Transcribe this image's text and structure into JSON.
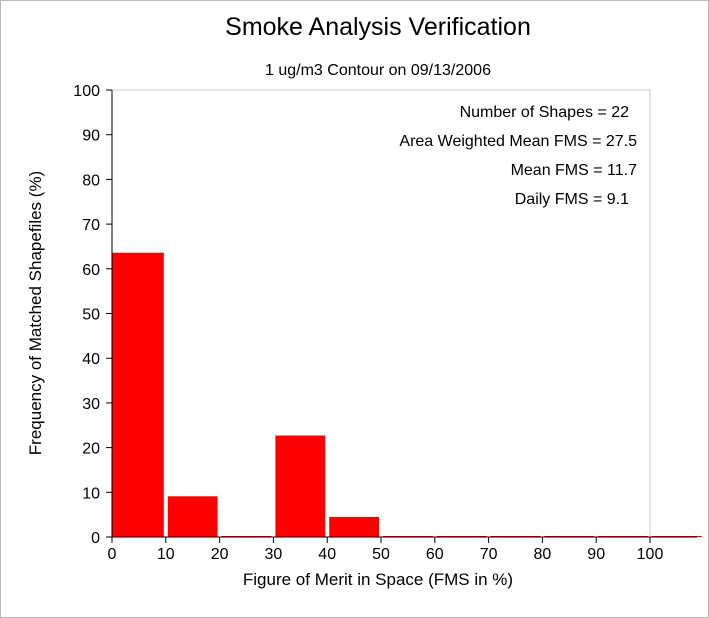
{
  "chart_data": {
    "type": "bar",
    "title": "Smoke Analysis Verification",
    "subtitle": "1 ug/m3 Contour on 09/13/2006",
    "xlabel": "Figure of Merit in Space (FMS in %)",
    "ylabel": "Frequency of Matched Shapefiles (%)",
    "xlim": [
      0,
      110
    ],
    "ylim": [
      0,
      100
    ],
    "xticks": [
      "0",
      "10",
      "20",
      "30",
      "40",
      "50",
      "60",
      "70",
      "80",
      "90",
      "100"
    ],
    "yticks": [
      "0",
      "10",
      "20",
      "30",
      "40",
      "50",
      "60",
      "70",
      "80",
      "90",
      "100"
    ],
    "bins": [
      {
        "start": 0,
        "end": 10,
        "value": 63.6
      },
      {
        "start": 10,
        "end": 20,
        "value": 9.1
      },
      {
        "start": 20,
        "end": 30,
        "value": 0
      },
      {
        "start": 30,
        "end": 40,
        "value": 22.7
      },
      {
        "start": 40,
        "end": 50,
        "value": 4.5
      },
      {
        "start": 50,
        "end": 60,
        "value": 0
      },
      {
        "start": 60,
        "end": 70,
        "value": 0
      },
      {
        "start": 70,
        "end": 80,
        "value": 0
      },
      {
        "start": 80,
        "end": 90,
        "value": 0
      },
      {
        "start": 90,
        "end": 100,
        "value": 0
      },
      {
        "start": 100,
        "end": 110,
        "value": 0
      }
    ],
    "bar_color": "#ff0000",
    "grid": false,
    "annotations": [
      "Number of Shapes = 22",
      "Area Weighted Mean FMS = 27.5",
      "Mean FMS = 11.7",
      "Daily FMS = 9.1"
    ]
  }
}
